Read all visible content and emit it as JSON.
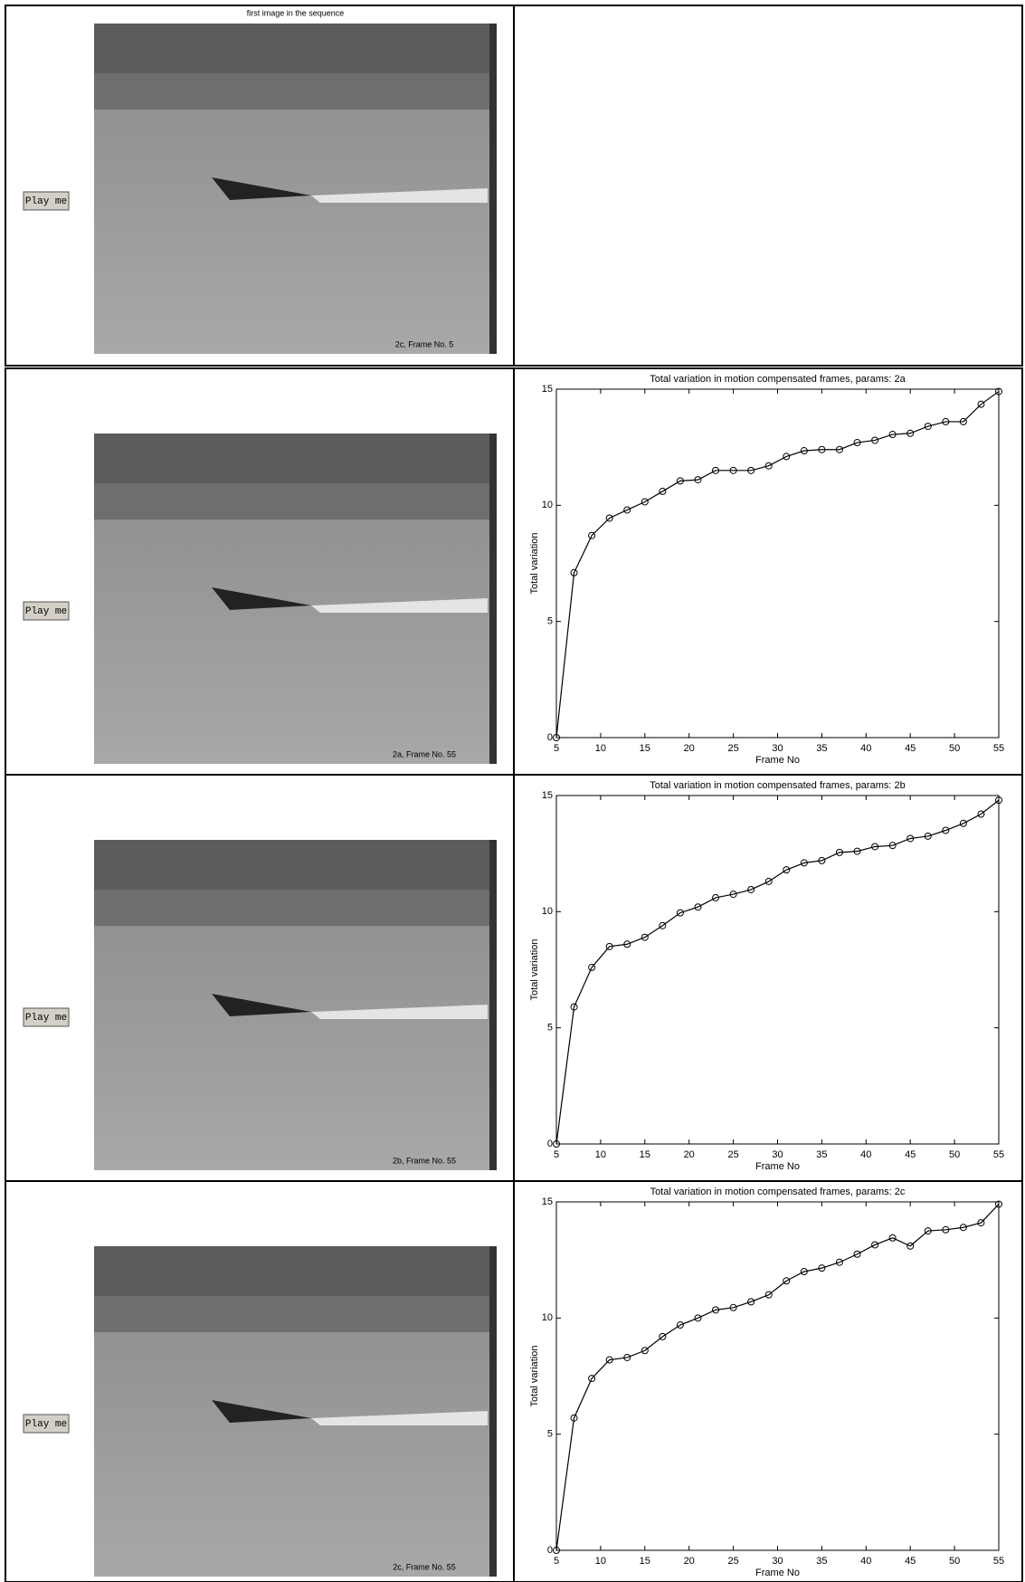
{
  "rows": [
    {
      "title": "first image in the sequence",
      "button": "Play me",
      "caption": "2c, Frame No. 5"
    },
    {
      "button": "Play me",
      "caption": "2a, Frame No. 55"
    },
    {
      "button": "Play me",
      "caption": "2b, Frame No. 55"
    },
    {
      "button": "Play me",
      "caption": "2c, Frame No. 55"
    }
  ],
  "chart_data": [
    {
      "type": "line",
      "title": "Total variation in motion compensated frames, params: 2a",
      "x_label": "Frame No",
      "y_label": "Total variation",
      "color": "#000000",
      "marker": "o",
      "x": [
        5,
        7,
        9,
        11,
        13,
        15,
        17,
        19,
        21,
        23,
        25,
        27,
        29,
        31,
        33,
        35,
        37,
        39,
        41,
        43,
        45,
        47,
        49,
        51,
        53,
        55
      ],
      "values": [
        0,
        7.1,
        8.7,
        9.45,
        9.8,
        10.15,
        10.6,
        11.05,
        11.1,
        11.5,
        11.5,
        11.5,
        11.7,
        12.1,
        12.35,
        12.4,
        12.4,
        12.7,
        12.8,
        13.05,
        13.1,
        13.4,
        13.6,
        13.6,
        14.35,
        14.9
      ],
      "xlim": [
        5,
        55
      ],
      "xticks": [
        5,
        10,
        15,
        20,
        25,
        30,
        35,
        40,
        45,
        50,
        55
      ],
      "ylim": [
        0,
        15
      ],
      "yticks": [
        0,
        5,
        10,
        15
      ]
    },
    {
      "type": "line",
      "title": "Total variation in motion compensated frames, params: 2b",
      "x_label": "Frame No",
      "y_label": "Total variation",
      "color": "#000000",
      "marker": "o",
      "x": [
        5,
        7,
        9,
        11,
        13,
        15,
        17,
        19,
        21,
        23,
        25,
        27,
        29,
        31,
        33,
        35,
        37,
        39,
        41,
        43,
        45,
        47,
        49,
        51,
        53,
        55
      ],
      "values": [
        0,
        5.9,
        7.6,
        8.5,
        8.6,
        8.9,
        9.4,
        9.95,
        10.2,
        10.6,
        10.75,
        10.95,
        11.3,
        11.8,
        12.1,
        12.2,
        12.55,
        12.6,
        12.8,
        12.85,
        13.15,
        13.25,
        13.5,
        13.8,
        14.2,
        14.8
      ],
      "xlim": [
        5,
        55
      ],
      "xticks": [
        5,
        10,
        15,
        20,
        25,
        30,
        35,
        40,
        45,
        50,
        55
      ],
      "ylim": [
        0,
        15
      ],
      "yticks": [
        0,
        5,
        10,
        15
      ]
    },
    {
      "type": "line",
      "title": "Total variation in motion compensated frames, params: 2c",
      "x_label": "Frame No",
      "y_label": "Total variation",
      "color": "#000000",
      "marker": "o",
      "x": [
        5,
        7,
        9,
        11,
        13,
        15,
        17,
        19,
        21,
        23,
        25,
        27,
        29,
        31,
        33,
        35,
        37,
        39,
        41,
        43,
        45,
        47,
        49,
        51,
        53,
        55
      ],
      "values": [
        0,
        5.7,
        7.4,
        8.2,
        8.3,
        8.6,
        9.2,
        9.7,
        10.0,
        10.35,
        10.45,
        10.7,
        11.0,
        11.6,
        12.0,
        12.15,
        12.4,
        12.75,
        13.15,
        13.45,
        13.1,
        13.75,
        13.8,
        13.9,
        14.1,
        14.9
      ],
      "xlim": [
        5,
        55
      ],
      "xticks": [
        5,
        10,
        15,
        20,
        25,
        30,
        35,
        40,
        45,
        50,
        55
      ],
      "ylim": [
        0,
        15
      ],
      "yticks": [
        0,
        5,
        10,
        15
      ]
    }
  ]
}
